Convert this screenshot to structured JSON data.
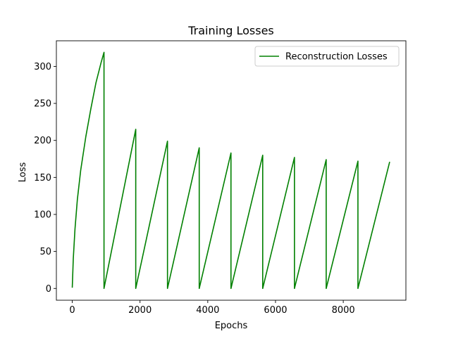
{
  "chart_data": {
    "type": "line",
    "title": "Training Losses",
    "xlabel": "Epochs",
    "ylabel": "Loss",
    "xlim": [
      -469,
      9849
    ],
    "ylim": [
      -15.9,
      334.6
    ],
    "xticks": [
      0,
      2000,
      4000,
      6000,
      8000
    ],
    "yticks": [
      0,
      50,
      100,
      150,
      200,
      250,
      300
    ],
    "xtick_labels": [
      "0",
      "2000",
      "4000",
      "6000",
      "8000"
    ],
    "ytick_labels": [
      "0",
      "50",
      "100",
      "150",
      "200",
      "250",
      "300"
    ],
    "grid": false,
    "legend_position": "top-right",
    "series": [
      {
        "name": "Reconstruction Losses",
        "color": "#008000",
        "x": [
          0,
          30,
          80,
          150,
          250,
          400,
          550,
          700,
          850,
          937,
          937,
          1874,
          1874,
          2811,
          2811,
          3748,
          3748,
          4685,
          4685,
          5622,
          5622,
          6559,
          6559,
          7496,
          7496,
          8433,
          8433,
          9370
        ],
        "y": [
          1,
          40,
          80,
          120,
          160,
          205,
          243,
          278,
          305,
          319,
          0,
          215,
          0,
          199,
          0,
          190,
          0,
          183,
          0,
          180,
          0,
          177,
          0,
          174,
          0,
          172,
          0,
          171
        ]
      }
    ]
  }
}
